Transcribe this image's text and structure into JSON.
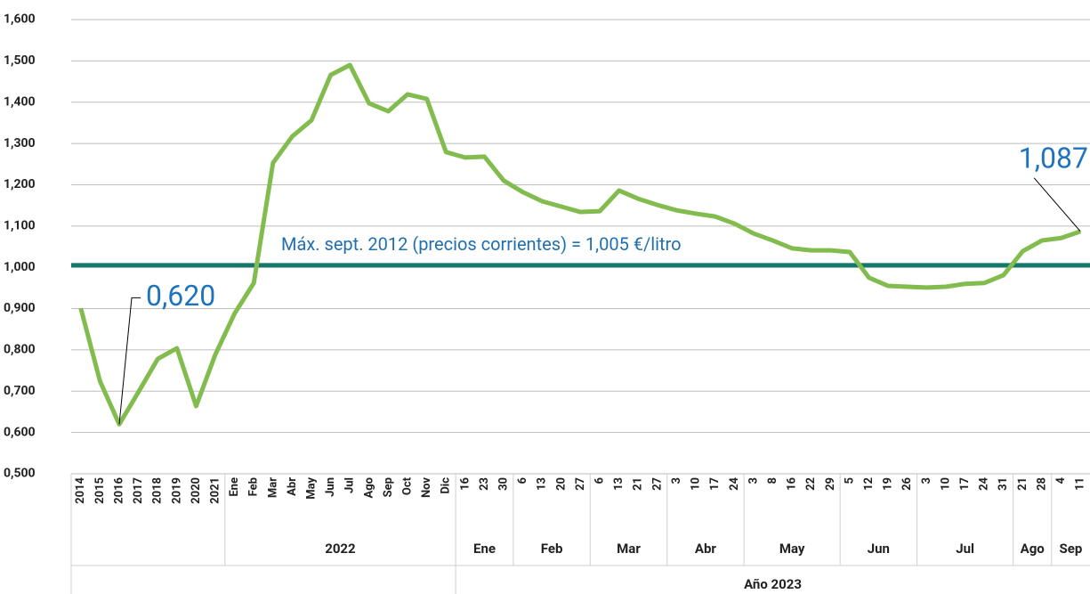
{
  "chart_data": {
    "type": "line",
    "ylim": [
      0.5,
      1.6
    ],
    "yticks": [
      {
        "value": 0.5,
        "label": "0,500"
      },
      {
        "value": 0.6,
        "label": "0,600"
      },
      {
        "value": 0.7,
        "label": "0,700"
      },
      {
        "value": 0.8,
        "label": "0,800"
      },
      {
        "value": 0.9,
        "label": "0,900"
      },
      {
        "value": 1.0,
        "label": "1,000"
      },
      {
        "value": 1.1,
        "label": "1,100"
      },
      {
        "value": 1.2,
        "label": "1,200"
      },
      {
        "value": 1.3,
        "label": "1,300"
      },
      {
        "value": 1.4,
        "label": "1,400"
      },
      {
        "value": 1.5,
        "label": "1,500"
      },
      {
        "value": 1.6,
        "label": "1,600"
      }
    ],
    "grid": true,
    "x_axis": [
      {
        "label": null,
        "groups": [
          {
            "label": null,
            "categories": [
              "2014",
              "2015",
              "2016",
              "2017",
              "2018",
              "2019",
              "2020",
              "2021"
            ]
          },
          {
            "label": "2022",
            "categories": [
              "Ene",
              "Feb",
              "Mar",
              "Abr",
              "May",
              "Jun",
              "Jul",
              "Ago",
              "Sep",
              "Oct",
              "Nov",
              "Dic"
            ]
          }
        ]
      },
      {
        "label": "Año 2023",
        "groups": [
          {
            "label": "Ene",
            "categories": [
              "16",
              "23",
              "30"
            ]
          },
          {
            "label": "Feb",
            "categories": [
              "6",
              "13",
              "20",
              "27"
            ]
          },
          {
            "label": "Mar",
            "categories": [
              "6",
              "13",
              "21",
              "27"
            ]
          },
          {
            "label": "Abr",
            "categories": [
              "3",
              "10",
              "17",
              "24"
            ]
          },
          {
            "label": "May",
            "categories": [
              "3",
              "8",
              "16",
              "22",
              "29"
            ]
          },
          {
            "label": "Jun",
            "categories": [
              "5",
              "12",
              "19",
              "26"
            ]
          },
          {
            "label": "Jul",
            "categories": [
              "3",
              "10",
              "17",
              "24",
              "31"
            ]
          },
          {
            "label": "Ago",
            "categories": [
              "21",
              "28"
            ]
          },
          {
            "label": "Sep",
            "categories": [
              "4",
              "11"
            ]
          }
        ]
      }
    ],
    "series": [
      {
        "color": "#82bc4f",
        "values": [
          0.901,
          0.724,
          0.62,
          0.698,
          0.778,
          0.804,
          0.664,
          0.789,
          0.888,
          0.962,
          1.253,
          1.317,
          1.356,
          1.466,
          1.49,
          1.397,
          1.378,
          1.419,
          1.408,
          1.279,
          1.266,
          1.268,
          1.21,
          1.182,
          1.16,
          1.147,
          1.134,
          1.136,
          1.186,
          1.166,
          1.151,
          1.138,
          1.13,
          1.123,
          1.106,
          1.082,
          1.065,
          1.046,
          1.041,
          1.041,
          1.037,
          0.975,
          0.955,
          0.953,
          0.951,
          0.953,
          0.96,
          0.962,
          0.981,
          1.039,
          1.065,
          1.071,
          1.087
        ],
        "value_labels": [
          null,
          null,
          "0,620",
          null,
          null,
          null,
          null,
          null,
          null,
          null,
          null,
          null,
          null,
          null,
          null,
          null,
          null,
          null,
          null,
          null,
          null,
          null,
          null,
          null,
          null,
          null,
          null,
          null,
          null,
          null,
          null,
          null,
          null,
          null,
          null,
          null,
          null,
          null,
          null,
          null,
          null,
          null,
          null,
          null,
          null,
          null,
          null,
          null,
          null,
          null,
          null,
          null,
          "1,087"
        ]
      }
    ],
    "reference_line": {
      "value": 1.005,
      "label": "Máx. sept. 2012 (precios corrientes) = 1,005 €/litro",
      "color": "#13776b"
    }
  }
}
